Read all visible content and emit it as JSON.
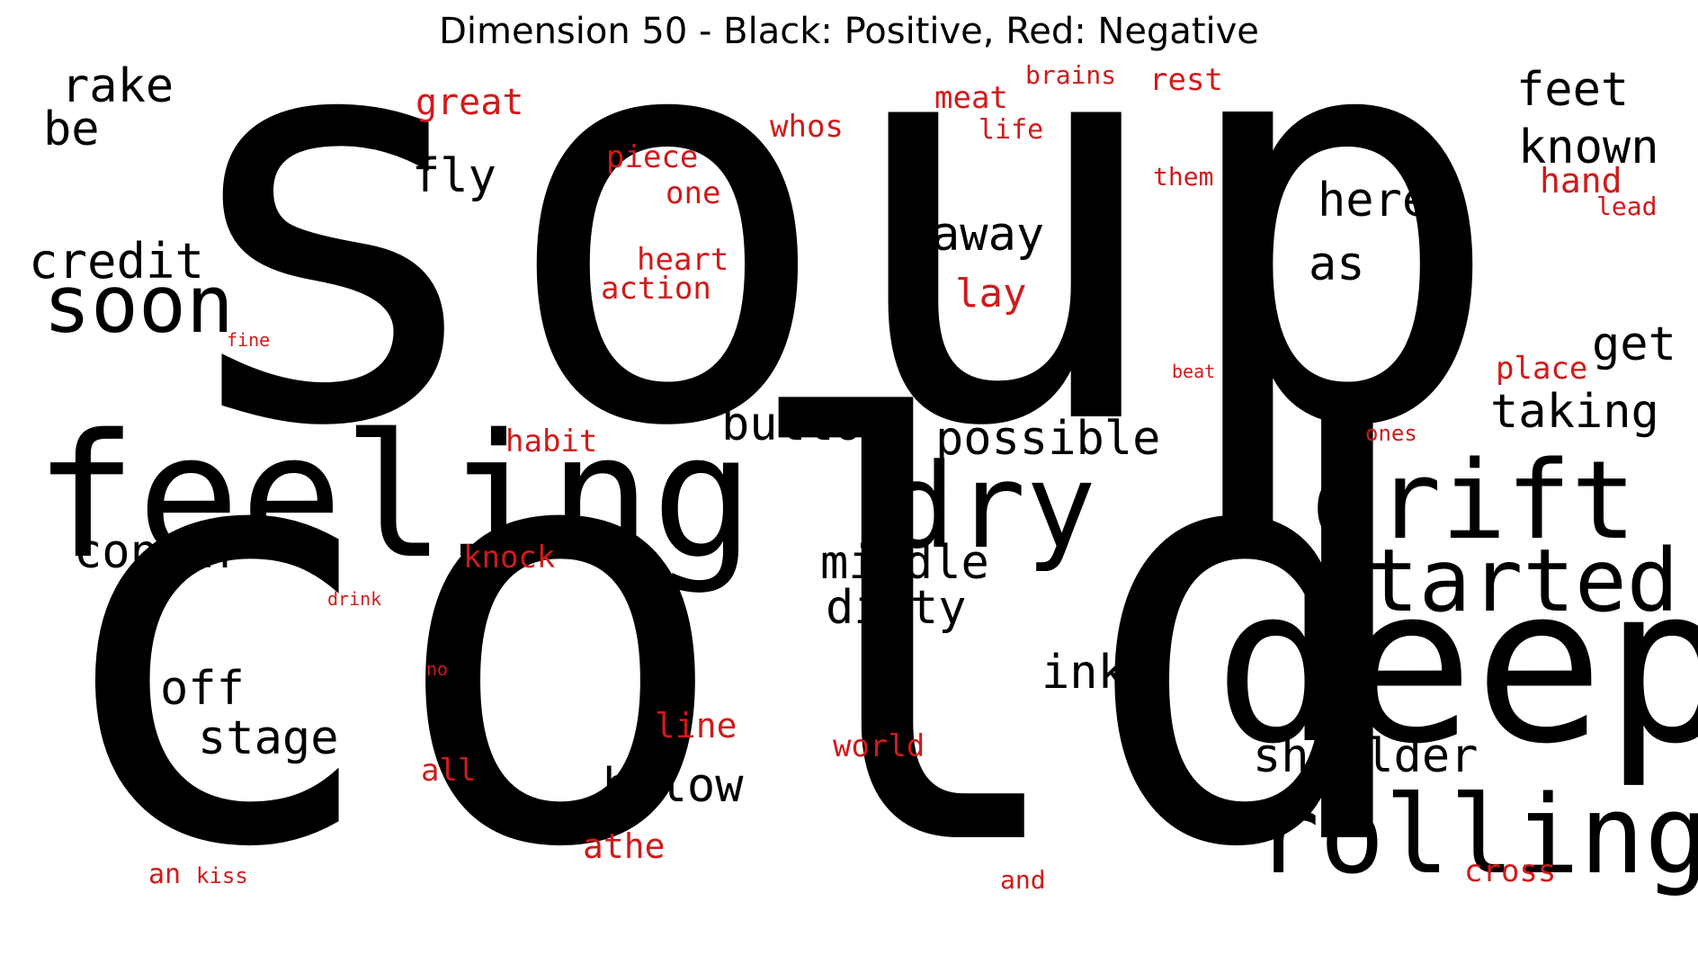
{
  "title": "Dimension 50 - Black: Positive, Red: Negative",
  "colors": {
    "positive": "#000000",
    "negative": "#d11a1a"
  },
  "words": {
    "soup": "soup",
    "cold": "cold",
    "feeling": "feeling",
    "deep": "deep",
    "drift": "drift",
    "rolling": "rolling",
    "started": "started",
    "dry": "dry",
    "soon": "soon",
    "credit": "credit",
    "rake": "rake",
    "be": "be",
    "fly": "fly",
    "away": "away",
    "feet": "feet",
    "known": "known",
    "here": "here",
    "as": "as",
    "get": "get",
    "taking": "taking",
    "button": "button",
    "possible": "possible",
    "concur": "concur",
    "middle": "middle",
    "dirty": "dirty",
    "off": "off",
    "stage": "stage",
    "ink": "ink",
    "shoulder": "shoulder",
    "below": "below",
    "great": "great",
    "whos": "whos",
    "meat": "meat",
    "brains": "brains",
    "rest": "rest",
    "life": "life",
    "piece": "piece",
    "one": "one",
    "them": "them",
    "hand": "hand",
    "lead": "lead",
    "heart": "heart",
    "action": "action",
    "lay": "lay",
    "fine": "fine",
    "beat": "beat",
    "place": "place",
    "ones": "ones",
    "habit": "habit",
    "knock": "knock",
    "drink": "drink",
    "no": "no",
    "line": "line",
    "world": "world",
    "all": "all",
    "athe": "athe",
    "an": "an",
    "kiss": "kiss",
    "and": "and",
    "cross": "cross"
  }
}
